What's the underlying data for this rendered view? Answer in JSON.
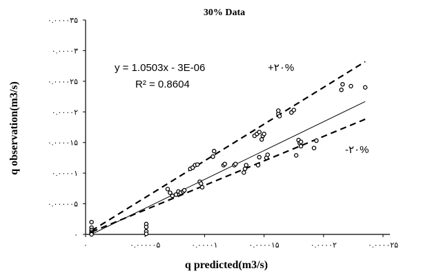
{
  "chart_data": {
    "type": "scatter",
    "title": "30% Data",
    "xlabel": "q predicted(m3/s)",
    "ylabel": "q observation(m3/s)",
    "xlim": [
      0,
      2.5e-05
    ],
    "ylim": [
      0,
      3.5e-05
    ],
    "grid": false,
    "x_ticks": [
      0,
      5e-06,
      1e-05,
      1.5e-05,
      2e-05,
      2.5e-05
    ],
    "x_tick_labels": [
      "۰",
      "۰.۰۰۰۰۰۵",
      "۰.۰۰۰۰۱",
      "۰.۰۰۰۰۱۵",
      "۰.۰۰۰۰۲",
      "۰.۰۰۰۰۲۵"
    ],
    "y_ticks": [
      0,
      5e-06,
      1e-05,
      1.5e-05,
      2e-05,
      2.5e-05,
      3e-05,
      3.5e-05
    ],
    "y_tick_labels": [
      "۰",
      "۰.۰۰۰۰۰۵",
      "۰.۰۰۰۰۱",
      "۰.۰۰۰۰۱۵",
      "۰.۰۰۰۰۲",
      "۰.۰۰۰۰۲۵",
      "۰.۰۰۰۰۳",
      "۰.۰۰۰۰۳۵"
    ],
    "equation": "y = 1.0503x - 3E-06",
    "r_squared": "R² = 0.8604",
    "trendline": {
      "slope": 1.0503,
      "intercept": -3e-06
    },
    "band_lines": [
      {
        "label": "+۲۰%",
        "factor": 1.2
      },
      {
        "label": "-۲۰%",
        "factor": 0.8
      }
    ],
    "points": [
      [
        5e-07,
        2e-06
      ],
      [
        5e-07,
        1.1e-06
      ],
      [
        5e-07,
        7e-07
      ],
      [
        5e-07,
        4e-07
      ],
      [
        5e-07,
        2e-07
      ],
      [
        5e-07,
        1e-07
      ],
      [
        5e-07,
        0.0
      ],
      [
        5.1e-06,
        1.7e-06
      ],
      [
        5.1e-06,
        1.2e-06
      ],
      [
        5.1e-06,
        5e-07
      ],
      [
        5.1e-06,
        1e-07
      ],
      [
        6.9e-06,
        7.4e-06
      ],
      [
        7.1e-06,
        6.8e-06
      ],
      [
        7.3e-06,
        6.3e-06
      ],
      [
        7.6e-06,
        6.5e-06
      ],
      [
        7.8e-06,
        7e-06
      ],
      [
        8e-06,
        6.8e-06
      ],
      [
        8.2e-06,
        7e-06
      ],
      [
        8.3e-06,
        7.2e-06
      ],
      [
        8.8e-06,
        1.07e-05
      ],
      [
        9e-06,
        1.09e-05
      ],
      [
        9.2e-06,
        1.13e-05
      ],
      [
        9.4e-06,
        1.14e-05
      ],
      [
        9.6e-06,
        8.6e-06
      ],
      [
        9.7e-06,
        8.3e-06
      ],
      [
        9.8e-06,
        7.7e-06
      ],
      [
        1.07e-05,
        1.27e-05
      ],
      [
        1.08e-05,
        1.36e-05
      ],
      [
        1.16e-05,
        1.13e-05
      ],
      [
        1.17e-05,
        1.15e-05
      ],
      [
        1.25e-05,
        1.13e-05
      ],
      [
        1.26e-05,
        1.15e-05
      ],
      [
        1.33e-05,
        1.01e-05
      ],
      [
        1.34e-05,
        1.07e-05
      ],
      [
        1.35e-05,
        1.13e-05
      ],
      [
        1.42e-05,
        1.61e-05
      ],
      [
        1.44e-05,
        1.64e-05
      ],
      [
        1.46e-05,
        1.67e-05
      ],
      [
        1.48e-05,
        1.55e-05
      ],
      [
        1.49e-05,
        1.61e-05
      ],
      [
        1.5e-05,
        1.64e-05
      ],
      [
        1.45e-05,
        1.13e-05
      ],
      [
        1.46e-05,
        1.26e-05
      ],
      [
        1.52e-05,
        1.25e-05
      ],
      [
        1.53e-05,
        1.3e-05
      ],
      [
        1.62e-05,
        1.97e-05
      ],
      [
        1.62e-05,
        2.02e-05
      ],
      [
        1.63e-05,
        1.93e-05
      ],
      [
        1.73e-05,
        1.99e-05
      ],
      [
        1.75e-05,
        2.03e-05
      ],
      [
        1.77e-05,
        1.29e-05
      ],
      [
        1.79e-05,
        1.54e-05
      ],
      [
        1.8e-05,
        1.49e-05
      ],
      [
        1.81e-05,
        1.44e-05
      ],
      [
        1.81e-05,
        1.51e-05
      ],
      [
        1.92e-05,
        1.41e-05
      ],
      [
        1.94e-05,
        1.53e-05
      ],
      [
        2.15e-05,
        2.36e-05
      ],
      [
        2.16e-05,
        2.45e-05
      ],
      [
        2.23e-05,
        2.42e-05
      ],
      [
        2.35e-05,
        2.4e-05
      ]
    ]
  }
}
